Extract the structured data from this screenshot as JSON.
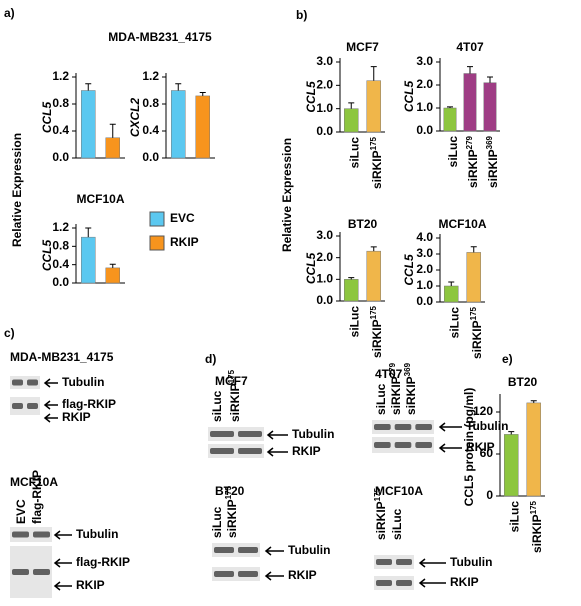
{
  "figure": {
    "panel_labels": [
      "a)",
      "b)",
      "c)",
      "d)",
      "e)"
    ],
    "panel_a_title": "MDA-MB231_4175",
    "ylabel_a": "Relative Expression",
    "ylabel_b": "Relative Expression",
    "legend": [
      {
        "label": "EVC",
        "color": "#5bc8f0"
      },
      {
        "label": "RKIP",
        "color": "#f7941d"
      }
    ]
  },
  "chart_data": [
    {
      "type": "bar",
      "ylabel": "CCL5",
      "categories": [
        null,
        null
      ],
      "values": [
        1.0,
        0.3
      ],
      "errors": [
        0.1,
        0.2
      ],
      "colors": [
        "#5bc8f0",
        "#f7941d"
      ],
      "ylim": [
        0,
        1.2
      ],
      "yticks": [
        {
          "value": 0,
          "label": "0.0"
        },
        0.4,
        0.8,
        1.2
      ]
    },
    {
      "type": "bar",
      "ylabel": "CXCL2",
      "categories": [
        null,
        null
      ],
      "values": [
        1.0,
        0.92
      ],
      "errors": [
        0.1,
        0.05
      ],
      "colors": [
        "#5bc8f0",
        "#f7941d"
      ],
      "ylim": [
        0,
        1.2
      ],
      "yticks": [
        {
          "value": 0,
          "label": "0.0"
        },
        0.4,
        0.8,
        1.2
      ]
    },
    {
      "type": "bar",
      "title": "MCF10A",
      "ylabel": "CCL5",
      "categories": [
        null,
        null
      ],
      "values": [
        1.0,
        0.33
      ],
      "errors": [
        0.2,
        0.08
      ],
      "colors": [
        "#5bc8f0",
        "#f7941d"
      ],
      "ylim": [
        0,
        1.2
      ],
      "yticks": [
        {
          "value": 0,
          "label": "0.0"
        },
        0.4,
        0.8,
        1.2
      ]
    },
    {
      "type": "bar",
      "title": "MCF7",
      "ylabel": "CCL5",
      "categories": [
        "siLuc",
        "siRKIP175"
      ],
      "values": [
        1.0,
        2.2
      ],
      "errors": [
        0.25,
        0.6
      ],
      "colors": [
        "#8dc63f",
        "#f0b64a"
      ],
      "ylim": [
        0,
        3
      ],
      "yticks": [
        {
          "value": 0,
          "label": "0.0"
        },
        {
          "value": 1,
          "label": "1.0"
        },
        {
          "value": 2,
          "label": "2.0"
        },
        {
          "value": 3,
          "label": "3.0"
        }
      ]
    },
    {
      "type": "bar",
      "title": "4T07",
      "ylabel": "CCL5",
      "categories": [
        "siLuc",
        "siRKIP279",
        "siRKIP369"
      ],
      "values": [
        1.0,
        2.5,
        2.1
      ],
      "errors": [
        0.05,
        0.3,
        0.25
      ],
      "colors": [
        "#8dc63f",
        "#9e3d84",
        "#9e3d84"
      ],
      "ylim": [
        0,
        3
      ],
      "yticks": [
        {
          "value": 0,
          "label": "0.0"
        },
        {
          "value": 1,
          "label": "1.0"
        },
        {
          "value": 2,
          "label": "2.0"
        },
        {
          "value": 3,
          "label": "3.0"
        }
      ]
    },
    {
      "type": "bar",
      "title": "BT20",
      "ylabel": "CCL5",
      "categories": [
        "siLuc",
        "siRKIP175"
      ],
      "values": [
        1.0,
        2.3
      ],
      "errors": [
        0.08,
        0.2
      ],
      "colors": [
        "#8dc63f",
        "#f0b64a"
      ],
      "ylim": [
        0,
        3
      ],
      "yticks": [
        {
          "value": 0,
          "label": "0.0"
        },
        {
          "value": 1,
          "label": "1.0"
        },
        {
          "value": 2,
          "label": "2.0"
        },
        {
          "value": 3,
          "label": "3.0"
        }
      ]
    },
    {
      "type": "bar",
      "title": "MCF10A",
      "ylabel": "CCL5",
      "categories": [
        "siLuc",
        "siRKIP175"
      ],
      "values": [
        1.0,
        3.1
      ],
      "errors": [
        0.25,
        0.35
      ],
      "colors": [
        "#8dc63f",
        "#f0b64a"
      ],
      "ylim": [
        0,
        4
      ],
      "yticks": [
        {
          "value": 0,
          "label": "0.0"
        },
        {
          "value": 1,
          "label": "1.0"
        },
        {
          "value": 2,
          "label": "2.0"
        },
        {
          "value": 3,
          "label": "3.0"
        },
        {
          "value": 4,
          "label": "4.0"
        }
      ]
    },
    {
      "type": "bar",
      "title": "BT20",
      "ylabel": "CCL5 protein (pg/ml)",
      "categories": [
        "siLuc",
        "siRKIP175"
      ],
      "values": [
        88,
        133
      ],
      "errors": [
        4,
        3
      ],
      "colors": [
        "#8dc63f",
        "#f0b64a"
      ],
      "ylim": [
        0,
        140
      ],
      "yticks": [
        0,
        60,
        120
      ]
    }
  ],
  "blots": [
    {
      "title": "MDA-MB231_4175",
      "lanes": [],
      "bands": [
        "Tubulin",
        "flag-RKIP",
        "RKIP"
      ]
    },
    {
      "title": "MCF10A",
      "lanes": [
        "EVC",
        "flag-RKIP"
      ],
      "bands": [
        "Tubulin",
        "flag-RKIP",
        "RKIP"
      ]
    },
    {
      "title": "MCF7",
      "lanes": [
        "siLuc",
        "siRKIP175"
      ],
      "bands": [
        "Tubulin",
        "RKIP"
      ]
    },
    {
      "title": "4T07",
      "lanes": [
        "siLuc",
        "siRKIP279",
        "siRKIP369"
      ],
      "bands": [
        "Tubulin",
        "RKIP"
      ]
    },
    {
      "title": "BT20",
      "lanes": [
        "siLuc",
        "siRKIP175"
      ],
      "bands": [
        "Tubulin",
        "RKIP"
      ]
    },
    {
      "title": "MCF10A",
      "lanes": [
        "siRKIP175",
        "siLuc"
      ],
      "bands": [
        "Tubulin",
        "RKIP"
      ]
    }
  ]
}
